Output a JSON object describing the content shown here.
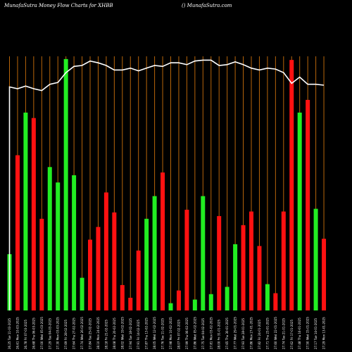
{
  "header": {
    "left_text": "MunafaSutra  Money Flow  Charts for XHBB",
    "right_text": "() MunafaSutra.com"
  },
  "colors": {
    "background": "#000000",
    "up_bar": "#22ee22",
    "down_bar": "#ff1111",
    "gridline": "#b8650a",
    "line": "#ffffff"
  },
  "chart_data": {
    "type": "bar",
    "title": "MunafaSutra  Money Flow  Charts for XHBB",
    "grid": true,
    "bar_ylim": [
      0,
      280
    ],
    "line_ylim": [
      0,
      300
    ],
    "categories": [
      "26.25 Tue 11-03-2025",
      "26.61 Mon 10-03-2025",
      "26.78 Fri 07-03-2025",
      "26.68 Thu 06-03-2025",
      "27.00 Wed 05-03-2025",
      "27.29 Tue 04-03-2025",
      "27.30 Mon 03-03-2025",
      "27.69 Fri 28-02-2025",
      "27.64 Thu 27-02-2025",
      "27.74 Wed 26-02-2025",
      "27.84 Tue 25-02-2025",
      "28.10 Mon 24-02-2025",
      "28.18 Fri 21-02-2025",
      "28.08 Thu 20-02-2025",
      "28.02 Wed 19-02-2025",
      "27.94 Tue 18-02-2025",
      "27.91 Fri 14-02-2025",
      "27.87 Thu 13-02-2025",
      "28.05 Wed 12-02-2025",
      "27.76 Tue 11-02-2025",
      "27.98 Mon 10-02-2025",
      "28.07 Fri 07-02-2025",
      "27.99 Thu 06-02-2025",
      "27.86 Wed 05-02-2025",
      "27.75 Tue 04-02-2025",
      "27.81 Mon 03-02-2025",
      "28.00 Fri 31-01-2025",
      "27.65 Thu 30-01-2025",
      "27.77 Wed 29-01-2025",
      "27.93 Tue 28-01-2025",
      "27.86 Mon 27-01-2025",
      "27.82 Fri 24-01-2025",
      "27.71 Thu 23-01-2025",
      "27.60 Wed 22-01-2025",
      "27.74 Tue 21-01-2025",
      "27.62 Fri 17-01-2025",
      "27.48 Thu 16-01-2025",
      "27.50 Wed 15-01-2025",
      "27.17 Tue 14-01-2025",
      "27.29 Mon 13-01-2025"
    ],
    "values": [
      62,
      171,
      218,
      212,
      101,
      158,
      141,
      277,
      149,
      36,
      78,
      92,
      130,
      108,
      28,
      14,
      66,
      101,
      126,
      152,
      8,
      22,
      111,
      12,
      126,
      18,
      104,
      26,
      73,
      94,
      109,
      71,
      29,
      19,
      109,
      276,
      218,
      232,
      112,
      79
    ],
    "directions": [
      "up",
      "down",
      "up",
      "down",
      "down",
      "up",
      "up",
      "up",
      "up",
      "up",
      "down",
      "down",
      "down",
      "down",
      "down",
      "down",
      "down",
      "up",
      "up",
      "down",
      "up",
      "down",
      "down",
      "up",
      "up",
      "up",
      "down",
      "up",
      "up",
      "down",
      "down",
      "down",
      "up",
      "down",
      "down",
      "down",
      "up",
      "down",
      "up",
      "down"
    ],
    "line_values": [
      250,
      248,
      251,
      248,
      246,
      253,
      255,
      266,
      273,
      274,
      279,
      277,
      274,
      269,
      269,
      271,
      268,
      271,
      274,
      273,
      277,
      277,
      275,
      279,
      280,
      280,
      274,
      275,
      278,
      275,
      271,
      269,
      271,
      270,
      266,
      254,
      261,
      253,
      253,
      252
    ]
  }
}
